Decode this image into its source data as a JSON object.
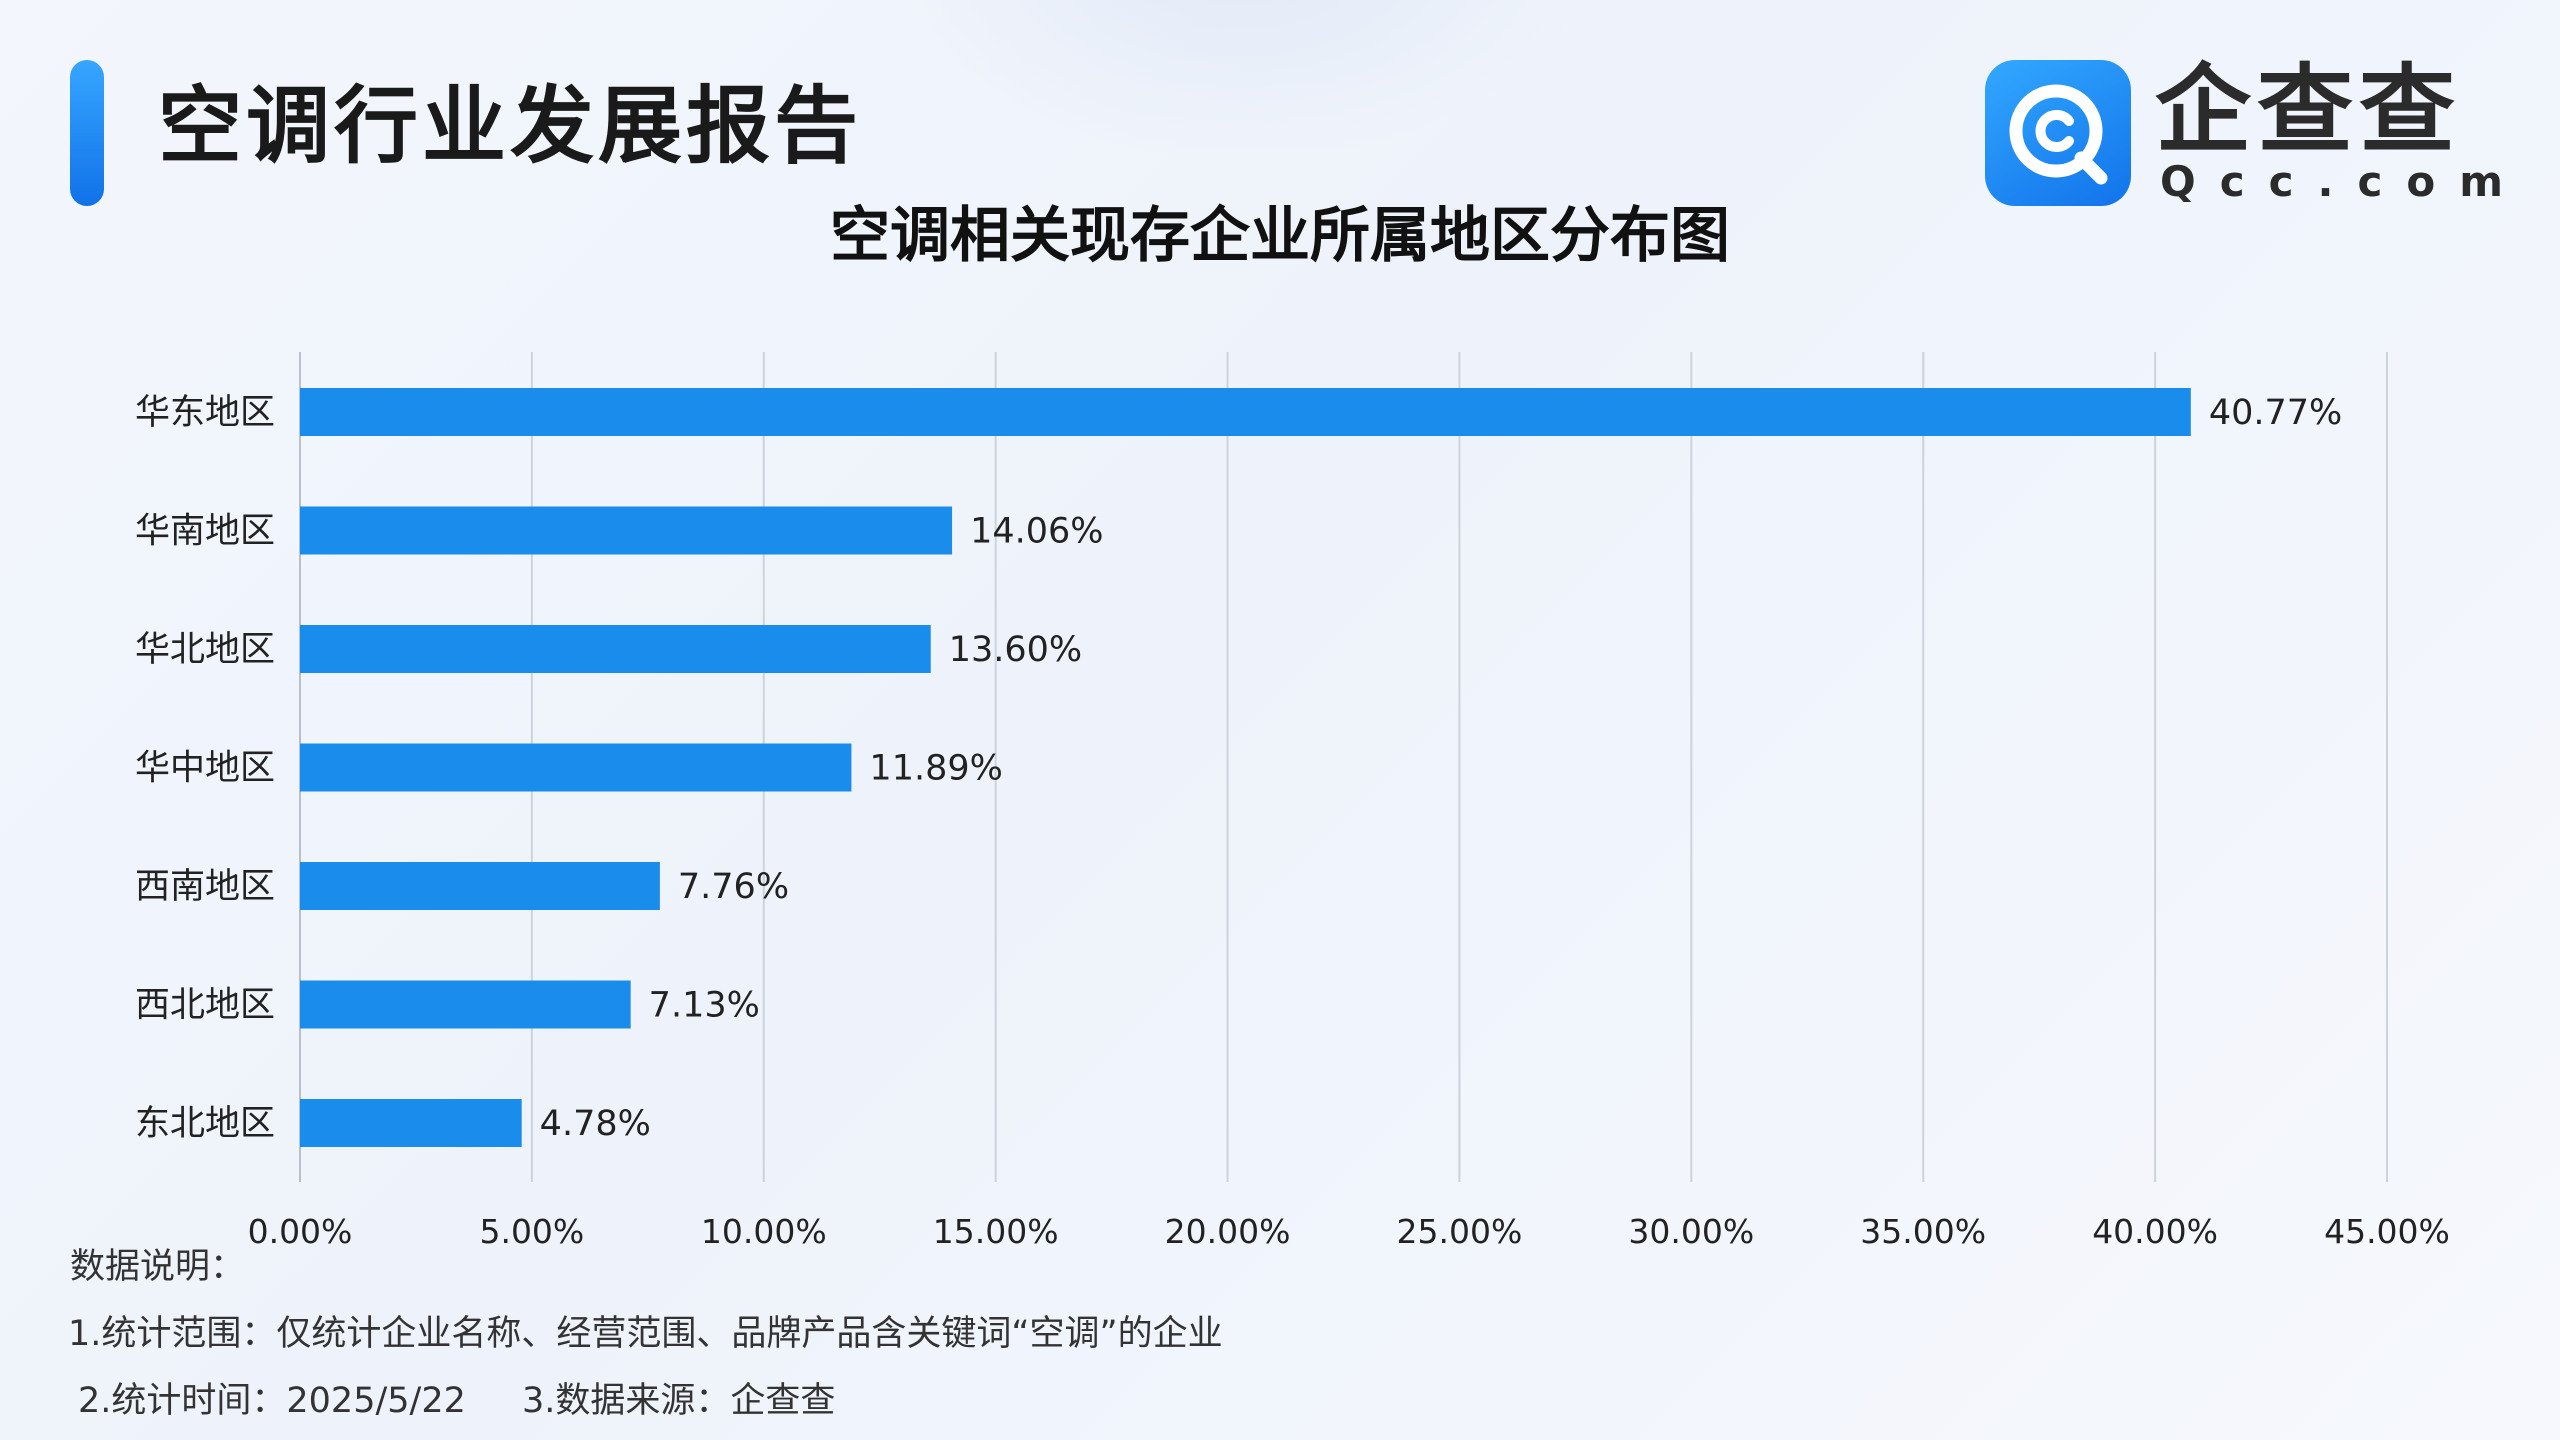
{
  "header": {
    "report_title": "空调行业发展报告",
    "logo_name": "企查查",
    "logo_domain": "Qcc.com"
  },
  "colors": {
    "bar": "#1a8cec",
    "accent": "#1a86f0",
    "grid": "#cdd3dd"
  },
  "chart_data": {
    "type": "bar",
    "orientation": "horizontal",
    "title": "空调相关现存企业所属地区分布图",
    "categories": [
      "华东地区",
      "华南地区",
      "华北地区",
      "华中地区",
      "西南地区",
      "西北地区",
      "东北地区"
    ],
    "values": [
      40.77,
      14.06,
      13.6,
      11.89,
      7.76,
      7.13,
      4.78
    ],
    "value_labels": [
      "40.77%",
      "14.06%",
      "13.60%",
      "11.89%",
      "7.76%",
      "7.13%",
      "4.78%"
    ],
    "xlim": [
      0,
      45
    ],
    "xticks": [
      0,
      5,
      10,
      15,
      20,
      25,
      30,
      35,
      40,
      45
    ],
    "xtick_labels": [
      "0.00%",
      "5.00%",
      "10.00%",
      "15.00%",
      "20.00%",
      "25.00%",
      "30.00%",
      "35.00%",
      "40.00%",
      "45.00%"
    ],
    "grid": true,
    "legend": false
  },
  "footer": {
    "heading": "数据说明：",
    "line1": "1.统计范围：仅统计企业名称、经营范围、品牌产品含关键词“空调”的企业",
    "line2": "2.统计时间：2025/5/22",
    "line3": "3.数据来源：企查查"
  }
}
